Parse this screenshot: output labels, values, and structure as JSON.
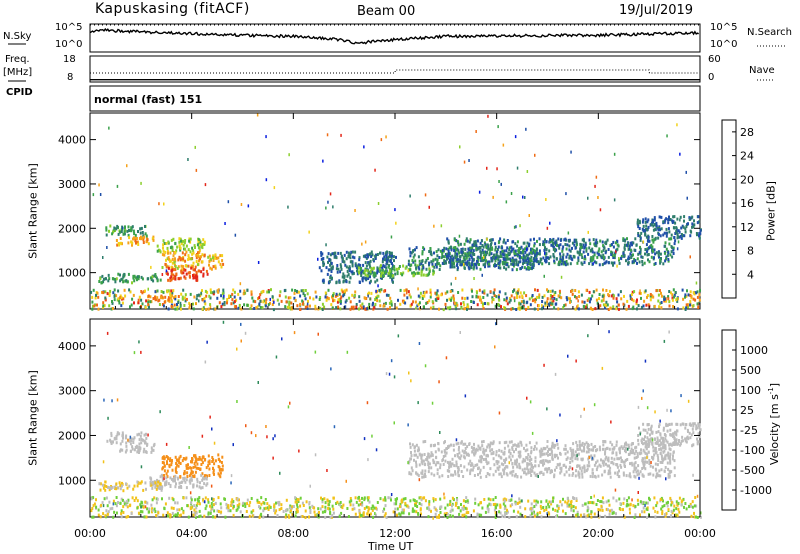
{
  "header": {
    "station": "Kapuskasing (fitACF)",
    "beam": "Beam 00",
    "date": "19/Jul/2019"
  },
  "left_labels": {
    "nsky": "N.Sky",
    "freq": "Freq.",
    "freq_unit": "[MHz]",
    "cpid": "CPID"
  },
  "right_labels": {
    "nsearch": "N.Search",
    "nave": "Nave"
  },
  "panel_sky": {
    "left_ticks": [
      "10^5",
      "10^0"
    ],
    "right_ticks": [
      "10^5",
      "10^0"
    ]
  },
  "panel_freq": {
    "left_ticks": [
      "18",
      "8"
    ],
    "right_ticks": [
      "60",
      "0"
    ]
  },
  "cpid_text": "normal (fast) 151",
  "colors": {
    "axis": "#000000",
    "scatter_low": "#bdbdbd"
  },
  "chart_data": [
    {
      "type": "line",
      "title": "",
      "series": [
        {
          "name": "N.Sky",
          "x_hours": [
            0,
            0.5,
            1.5,
            3,
            6,
            8,
            9.5,
            10.5,
            12,
            14,
            17,
            20,
            22,
            24
          ],
          "log10_values": [
            3.6,
            3.9,
            3.7,
            3.4,
            3.0,
            2.8,
            2.4,
            1.6,
            2.2,
            2.8,
            2.9,
            3.0,
            3.2,
            3.4
          ]
        },
        {
          "name": "N.Search",
          "x_hours": [
            0,
            24
          ],
          "log10_values": [
            5.0,
            5.0
          ]
        }
      ],
      "xlim": [
        0,
        24
      ]
    },
    {
      "type": "line",
      "series": [
        {
          "name": "Freq.",
          "x_hours": [
            0,
            24
          ],
          "values": [
            10.5,
            10.5
          ]
        },
        {
          "name": "Nave",
          "x_hours": [
            0,
            12,
            12.01,
            22,
            22.01,
            24
          ],
          "values": [
            13,
            13,
            16,
            16,
            13,
            13
          ]
        }
      ],
      "xlim": [
        0,
        24
      ]
    },
    {
      "type": "heatmap",
      "xlabel": "",
      "ylabel": "Slant Range [km]",
      "xlim": [
        0,
        24
      ],
      "ylim": [
        180,
        4600
      ],
      "yticks": [
        1000,
        2000,
        3000,
        4000
      ],
      "colorbar": {
        "label": "Power [dB]",
        "ticks": [
          "4",
          "8",
          "12",
          "16",
          "20",
          "24",
          "28"
        ],
        "colors": [
          "#0a1ee0",
          "#1f4fa8",
          "#2e7d6b",
          "#3aa14a",
          "#8ccf2e",
          "#f2d21a",
          "#f5a21a",
          "#ef6b15",
          "#e3261a"
        ],
        "range": [
          0,
          30
        ]
      },
      "regions": [
        {
          "x": [
            0.6,
            2.2
          ],
          "y": [
            1850,
            2100
          ],
          "values": [
            8,
            14
          ]
        },
        {
          "x": [
            1.0,
            2.5
          ],
          "y": [
            1650,
            1850
          ],
          "values": [
            18,
            24
          ]
        },
        {
          "x": [
            2.6,
            4.5
          ],
          "y": [
            1500,
            1800
          ],
          "values": [
            12,
            18
          ]
        },
        {
          "x": [
            2.8,
            5.2
          ],
          "y": [
            1100,
            1500
          ],
          "values": [
            16,
            26
          ]
        },
        {
          "x": [
            2.8,
            4.6
          ],
          "y": [
            850,
            1150
          ],
          "values": [
            24,
            30
          ]
        },
        {
          "x": [
            0.3,
            2.8
          ],
          "y": [
            800,
            1000
          ],
          "values": [
            8,
            14
          ]
        },
        {
          "x": [
            2.2,
            3.3
          ],
          "y": [
            380,
            520
          ],
          "values": [
            20,
            26
          ]
        },
        {
          "x": [
            9.0,
            12.0
          ],
          "y": [
            800,
            1500
          ],
          "values": [
            4,
            10
          ]
        },
        {
          "x": [
            10.5,
            13.5
          ],
          "y": [
            950,
            1200
          ],
          "values": [
            10,
            16
          ]
        },
        {
          "x": [
            12.5,
            17.5
          ],
          "y": [
            1100,
            1600
          ],
          "values": [
            4,
            12
          ]
        },
        {
          "x": [
            14.0,
            23.0
          ],
          "y": [
            1200,
            1800
          ],
          "values": [
            4,
            12
          ]
        },
        {
          "x": [
            21.5,
            24.0
          ],
          "y": [
            1800,
            2300
          ],
          "values": [
            4,
            10
          ]
        },
        {
          "x": [
            0,
            24
          ],
          "y": [
            200,
            650
          ],
          "values": [
            4,
            28
          ]
        }
      ]
    },
    {
      "type": "heatmap",
      "xlabel": "Time UT",
      "ylabel": "Slant Range [km]",
      "xticks": [
        "00:00",
        "04:00",
        "08:00",
        "12:00",
        "16:00",
        "20:00",
        "00:00"
      ],
      "xlim": [
        0,
        24
      ],
      "ylim": [
        180,
        4600
      ],
      "yticks": [
        1000,
        2000,
        3000,
        4000
      ],
      "colorbar": {
        "label": "Velocity [m s^-1]",
        "ticks": [
          "1000",
          "500",
          "100",
          "25",
          "-25",
          "-100",
          "-500",
          "-1000"
        ],
        "colors": [
          "#1030c0",
          "#2a66b8",
          "#2e8a5a",
          "#6fcf3a",
          "#bdbdbd",
          "#f2c21a",
          "#f5901a",
          "#ef5a15",
          "#e3261a"
        ]
      },
      "regions": [
        {
          "x": [
            0.6,
            2.2
          ],
          "y": [
            1850,
            2100
          ],
          "values": [
            -25,
            25
          ]
        },
        {
          "x": [
            1.0,
            2.5
          ],
          "y": [
            1650,
            1850
          ],
          "values": [
            -25,
            25
          ]
        },
        {
          "x": [
            2.8,
            5.2
          ],
          "y": [
            1100,
            1600
          ],
          "values": [
            -500,
            -100
          ]
        },
        {
          "x": [
            2.2,
            4.6
          ],
          "y": [
            850,
            1150
          ],
          "values": [
            -25,
            25
          ]
        },
        {
          "x": [
            0.3,
            2.8
          ],
          "y": [
            800,
            1000
          ],
          "values": [
            -100,
            25
          ]
        },
        {
          "x": [
            12.5,
            23.0
          ],
          "y": [
            1100,
            1900
          ],
          "values": [
            -25,
            25
          ]
        },
        {
          "x": [
            21.5,
            24.0
          ],
          "y": [
            1800,
            2300
          ],
          "values": [
            -25,
            25
          ]
        },
        {
          "x": [
            0,
            24
          ],
          "y": [
            200,
            650
          ],
          "values": [
            -100,
            100
          ]
        }
      ]
    }
  ]
}
